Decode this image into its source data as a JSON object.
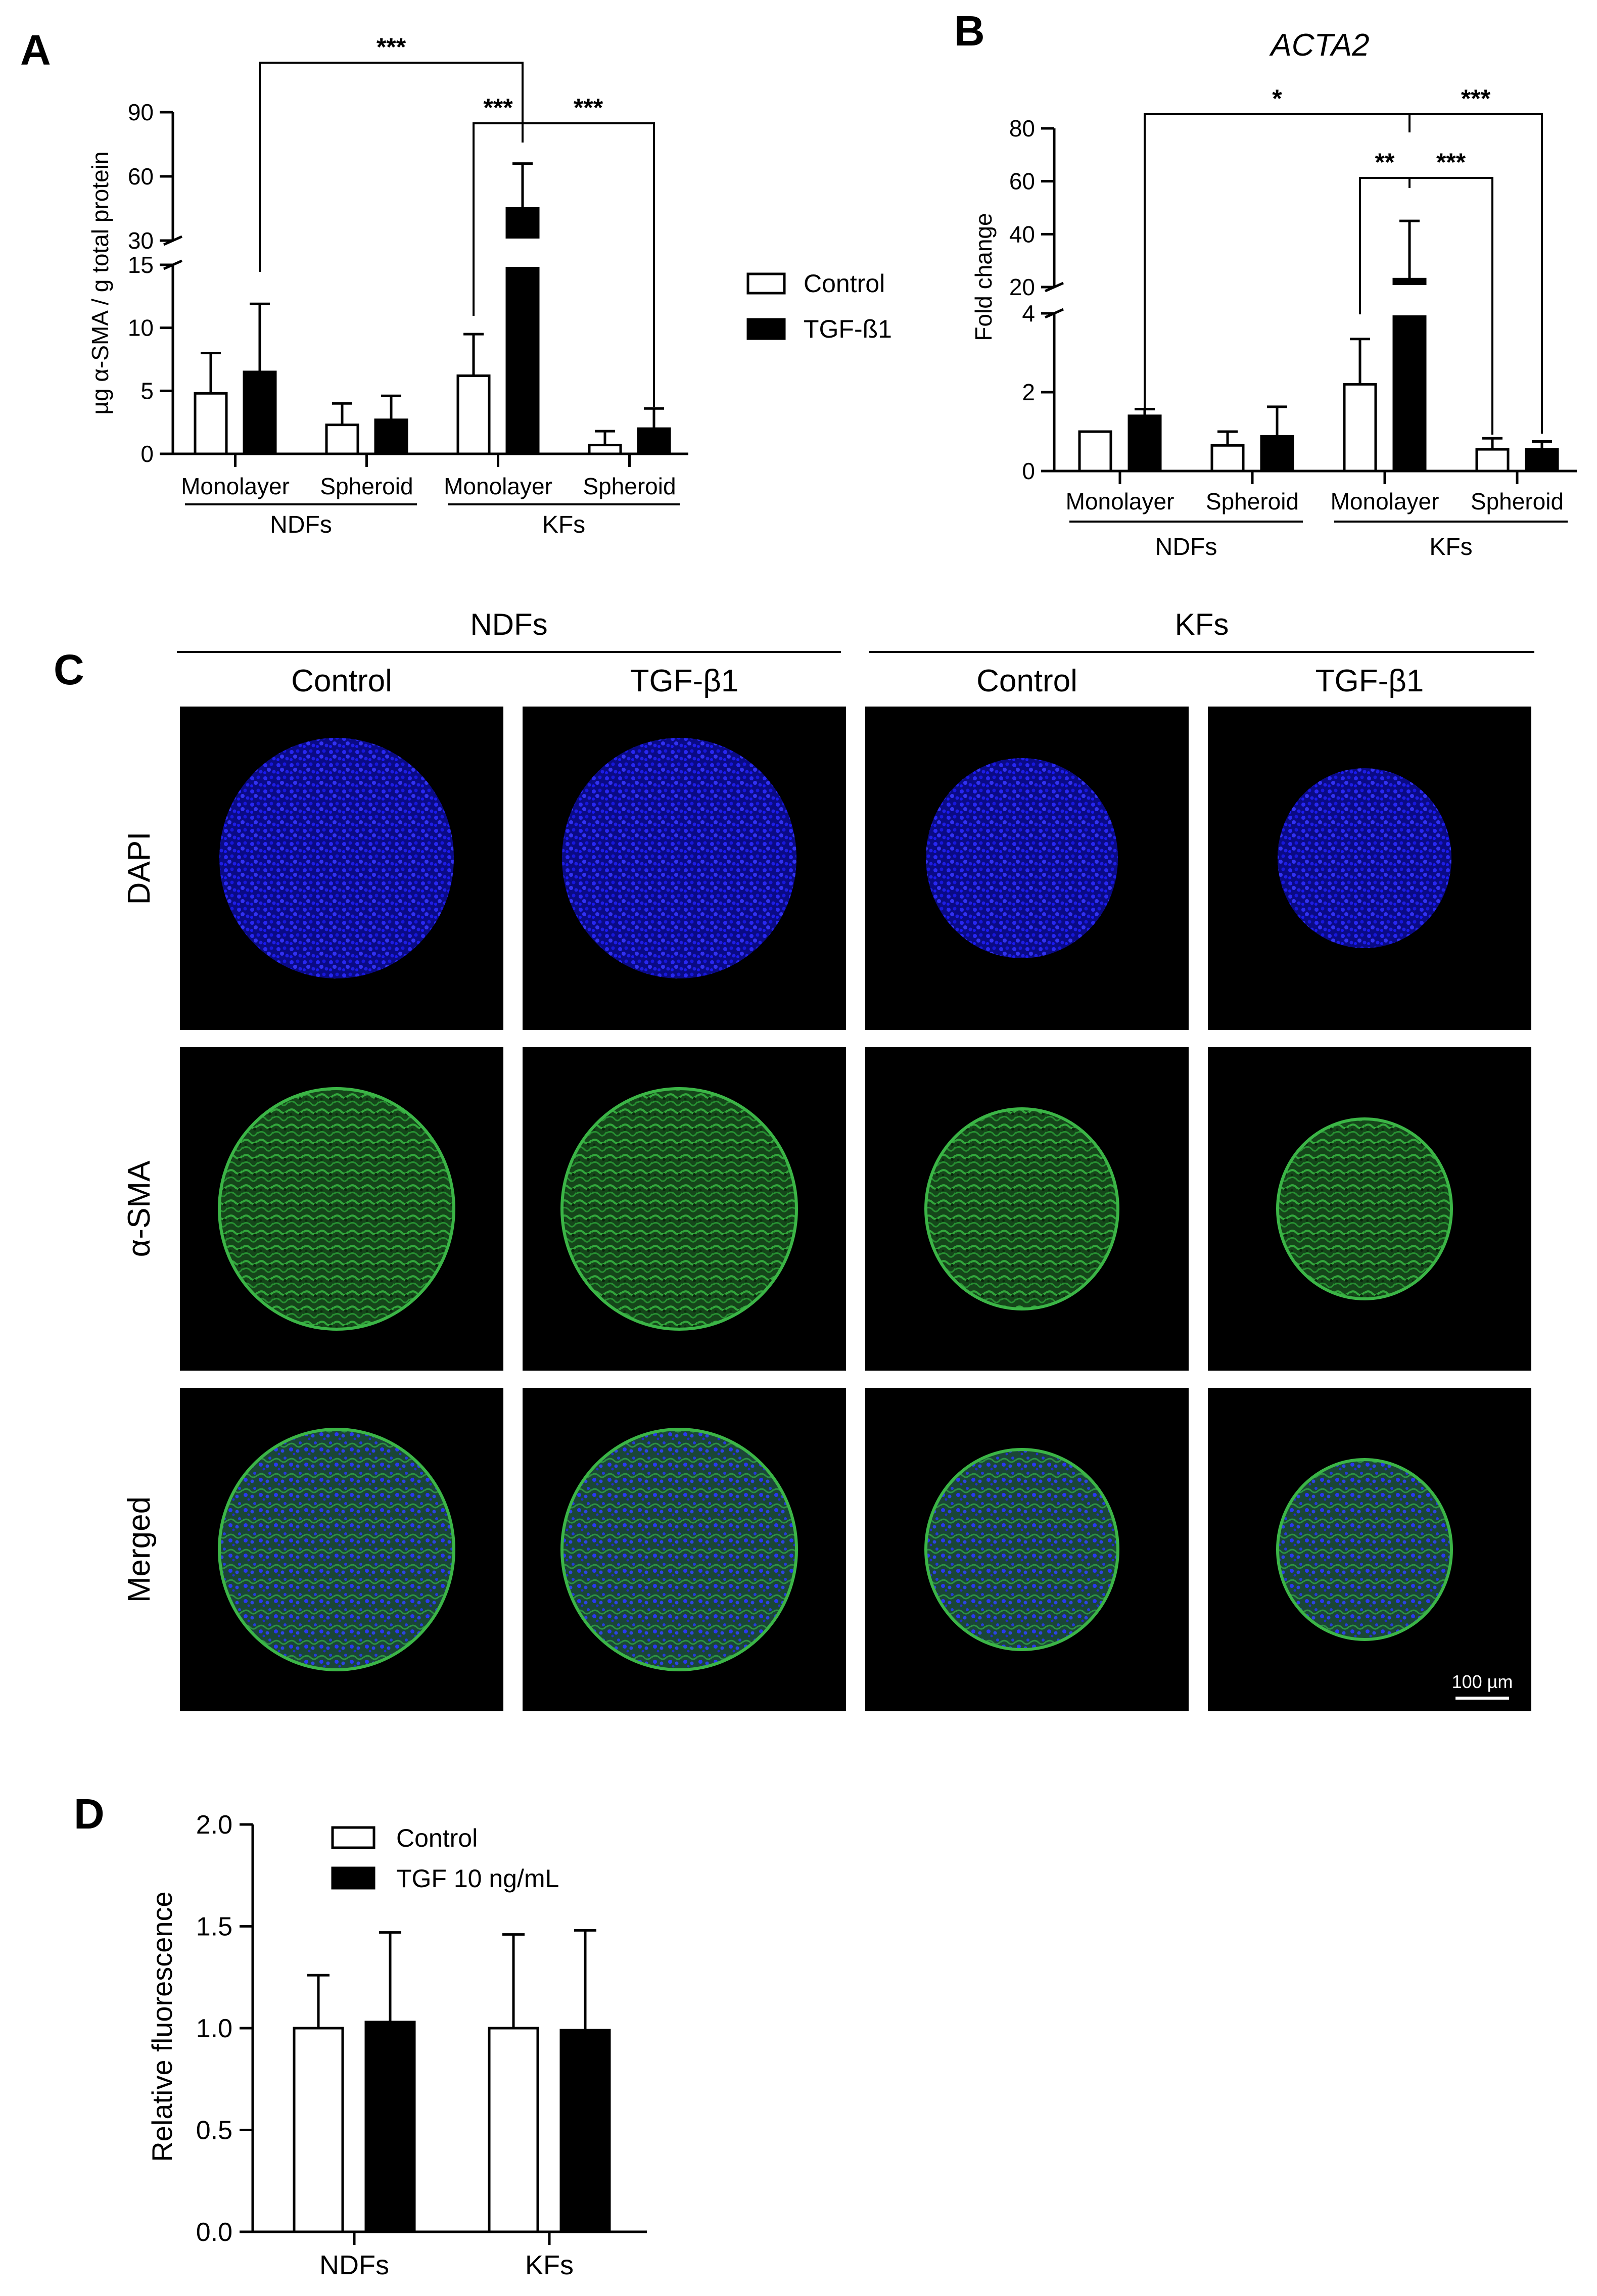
{
  "panel_letters": {
    "a": "A",
    "b": "B",
    "c": "C",
    "d": "D"
  },
  "chart_data": [
    {
      "panel": "A",
      "type": "bar",
      "title": "",
      "ylabel": "µg α-SMA / g total protein",
      "broken_axis": true,
      "lower_ylim": [
        0,
        15
      ],
      "lower_ticks": [
        "0",
        "5",
        "10",
        "15"
      ],
      "upper_ylim": [
        30,
        90
      ],
      "upper_ticks": [
        "30",
        "60",
        "90"
      ],
      "categories": [
        "Monolayer",
        "Spheroid",
        "Monolayer",
        "Spheroid"
      ],
      "groups": [
        {
          "label": "NDFs",
          "categories": [
            0,
            1
          ]
        },
        {
          "label": "KFs",
          "categories": [
            2,
            3
          ]
        }
      ],
      "legend": {
        "position": "right",
        "entries": [
          "Control",
          "TGF-ß1"
        ]
      },
      "series": [
        {
          "name": "Control",
          "color": "#ffffff",
          "values": [
            4.8,
            2.3,
            6.2,
            0.7
          ],
          "errors": [
            3.2,
            1.7,
            3.3,
            1.1
          ]
        },
        {
          "name": "TGF-ß1",
          "color": "#000000",
          "values": [
            6.5,
            2.7,
            45,
            2.0
          ],
          "errors": [
            5.4,
            1.9,
            21,
            1.6
          ]
        }
      ],
      "significance": [
        {
          "label": "***",
          "from": "NDFs Monolayer TGF-ß1",
          "to": "KFs Monolayer TGF-ß1"
        },
        {
          "label": "***",
          "from": "KFs Monolayer Control",
          "to": "KFs Monolayer TGF-ß1"
        },
        {
          "label": "***",
          "from": "KFs Monolayer TGF-ß1",
          "to": "KFs Spheroid TGF-ß1"
        }
      ]
    },
    {
      "panel": "B",
      "type": "bar",
      "title": "ACTA2",
      "ylabel": "Fold change",
      "broken_axis": true,
      "lower_ylim": [
        0,
        4
      ],
      "lower_ticks": [
        "0",
        "2",
        "4"
      ],
      "upper_ylim": [
        20,
        80
      ],
      "upper_ticks": [
        "20",
        "40",
        "60",
        "80"
      ],
      "categories": [
        "Monolayer",
        "Spheroid",
        "Monolayer",
        "Spheroid"
      ],
      "groups": [
        {
          "label": "NDFs",
          "categories": [
            0,
            1
          ]
        },
        {
          "label": "KFs",
          "categories": [
            2,
            3
          ]
        }
      ],
      "series": [
        {
          "name": "Control",
          "color": "#ffffff",
          "values": [
            1.0,
            0.65,
            2.2,
            0.55
          ],
          "errors": [
            0,
            0.35,
            1.15,
            0.28
          ]
        },
        {
          "name": "TGF-ß1",
          "color": "#000000",
          "values": [
            1.4,
            0.88,
            23,
            0.55
          ],
          "errors": [
            0.17,
            0.75,
            22,
            0.2
          ]
        }
      ],
      "significance": [
        {
          "label": "*",
          "from": "NDFs Monolayer TGF-ß1",
          "to": "KFs Monolayer TGF-ß1"
        },
        {
          "label": "***",
          "from": "KFs Monolayer TGF-ß1",
          "to": "KFs Spheroid TGF-ß1"
        },
        {
          "label": "**",
          "from": "KFs Monolayer Control",
          "to": "KFs Monolayer TGF-ß1"
        },
        {
          "label": "***",
          "from": "KFs Monolayer TGF-ß1",
          "to": "KFs Spheroid Control"
        }
      ]
    },
    {
      "panel": "D",
      "type": "bar",
      "title": "",
      "ylabel": "Relative fluorescence",
      "ylim": [
        0,
        2.0
      ],
      "yticks": [
        "0.0",
        "0.5",
        "1.0",
        "1.5",
        "2.0"
      ],
      "categories": [
        "NDFs",
        "KFs"
      ],
      "legend": {
        "position": "top",
        "entries": [
          "Control",
          "TGF 10 ng/mL"
        ]
      },
      "series": [
        {
          "name": "Control",
          "color": "#ffffff",
          "values": [
            1.0,
            1.0
          ],
          "errors": [
            0.26,
            0.46
          ]
        },
        {
          "name": "TGF 10 ng/mL",
          "color": "#000000",
          "values": [
            1.03,
            0.99
          ],
          "errors": [
            0.44,
            0.49
          ]
        }
      ]
    }
  ],
  "panel_c": {
    "group_labels": [
      "NDFs",
      "KFs"
    ],
    "column_labels": [
      "Control",
      "TGF-β1",
      "Control",
      "TGF-β1"
    ],
    "row_labels": [
      "DAPI",
      "α-SMA",
      "Merged"
    ],
    "scale_bar": "100 µm",
    "colors": {
      "dapi": "#1414ff",
      "sma": "#2fae3a",
      "background": "#000000"
    }
  }
}
